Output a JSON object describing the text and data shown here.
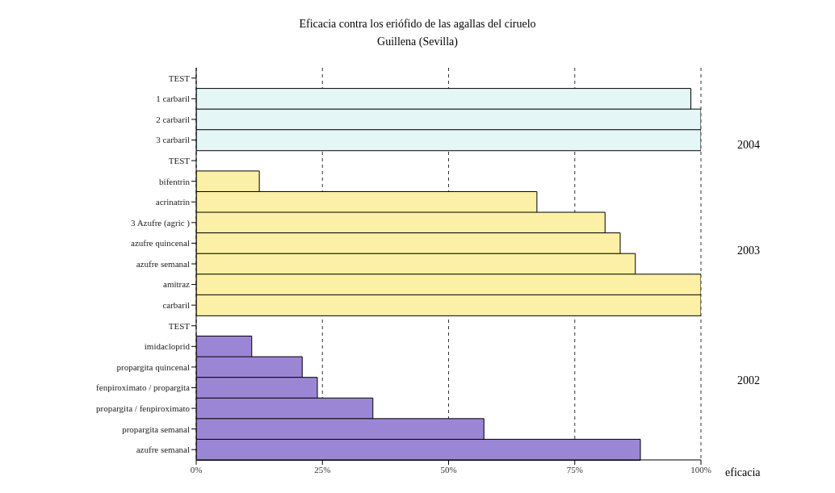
{
  "chart_data": {
    "type": "bar",
    "orientation": "horizontal",
    "title": "Eficacia contra los eriófido de las agallas del ciruelo",
    "subtitle": "Guillena (Sevilla)",
    "xlabel": "eficacia",
    "categories": [
      "TEST",
      "1 carbaril",
      "2 carbaril",
      "3 carbaril",
      "TEST",
      "bifentrin",
      "acrinatrin",
      "3 Azufre (agric )",
      "azufre quincenal",
      "azufre semanal",
      "amitraz",
      "carbaril",
      "TEST",
      "imidacloprid",
      "propargita quincenal",
      "fenpiroximato / propargita",
      "propargita / fenpiroximato",
      "propargita semanal",
      "azufre semanal"
    ],
    "values": [
      null,
      98,
      100,
      100,
      null,
      12.5,
      67.5,
      81,
      84,
      87,
      100,
      100,
      null,
      11,
      21,
      24,
      35,
      57,
      88
    ],
    "colors": [
      null,
      "#e4f6f6",
      "#e4f6f6",
      "#e4f6f6",
      null,
      "#fbf0a6",
      "#fbf0a6",
      "#fbf0a6",
      "#fbf0a6",
      "#fbf0a6",
      "#fbf0a6",
      "#fbf0a6",
      null,
      "#9b86d6",
      "#9b86d6",
      "#9b86d6",
      "#9b86d6",
      "#9b86d6",
      "#9b86d6"
    ],
    "xlim": [
      0,
      100
    ],
    "xticks": [
      {
        "value": 0,
        "label": "0%"
      },
      {
        "value": 25,
        "label": "25%"
      },
      {
        "value": 50,
        "label": "50%"
      },
      {
        "value": 75,
        "label": "75%"
      },
      {
        "value": 100,
        "label": "100%"
      }
    ],
    "grid": "x",
    "legend": false,
    "annotations": [
      "2004",
      "2003",
      "2002"
    ]
  }
}
